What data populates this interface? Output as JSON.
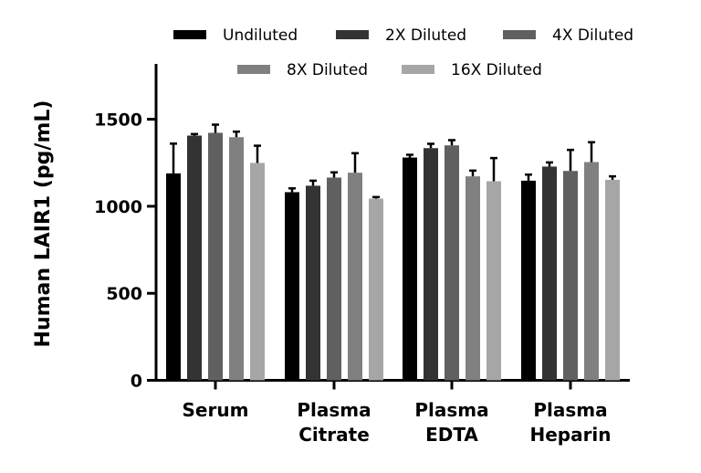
{
  "chart_data": {
    "type": "bar",
    "title": "",
    "xlabel": "",
    "ylabel": "Human LAIR1 (pg/mL)",
    "ylim": [
      0,
      1800
    ],
    "yticks": [
      0,
      500,
      1000,
      1500
    ],
    "grid": false,
    "legend_position": "top",
    "categories": [
      [
        "Serum"
      ],
      [
        "Plasma",
        "Citrate"
      ],
      [
        "Plasma",
        "EDTA"
      ],
      [
        "Plasma",
        "Heparin"
      ]
    ],
    "series": [
      {
        "name": "Undiluted",
        "color": "#000000",
        "values": [
          1189,
          1081,
          1280,
          1147
        ],
        "errors": [
          171,
          22,
          16,
          35
        ]
      },
      {
        "name": "2X Diluted",
        "color": "#333333",
        "values": [
          1406,
          1118,
          1334,
          1228
        ],
        "errors": [
          9,
          29,
          25,
          24
        ]
      },
      {
        "name": "4X Diluted",
        "color": "#606060",
        "values": [
          1422,
          1165,
          1350,
          1203
        ],
        "errors": [
          47,
          30,
          30,
          121
        ]
      },
      {
        "name": "8X Diluted",
        "color": "#808080",
        "values": [
          1397,
          1193,
          1172,
          1254
        ],
        "errors": [
          32,
          112,
          33,
          114
        ]
      },
      {
        "name": "16X Diluted",
        "color": "#a6a6a6",
        "values": [
          1249,
          1044,
          1144,
          1152
        ],
        "errors": [
          99,
          9,
          133,
          20
        ]
      }
    ]
  }
}
